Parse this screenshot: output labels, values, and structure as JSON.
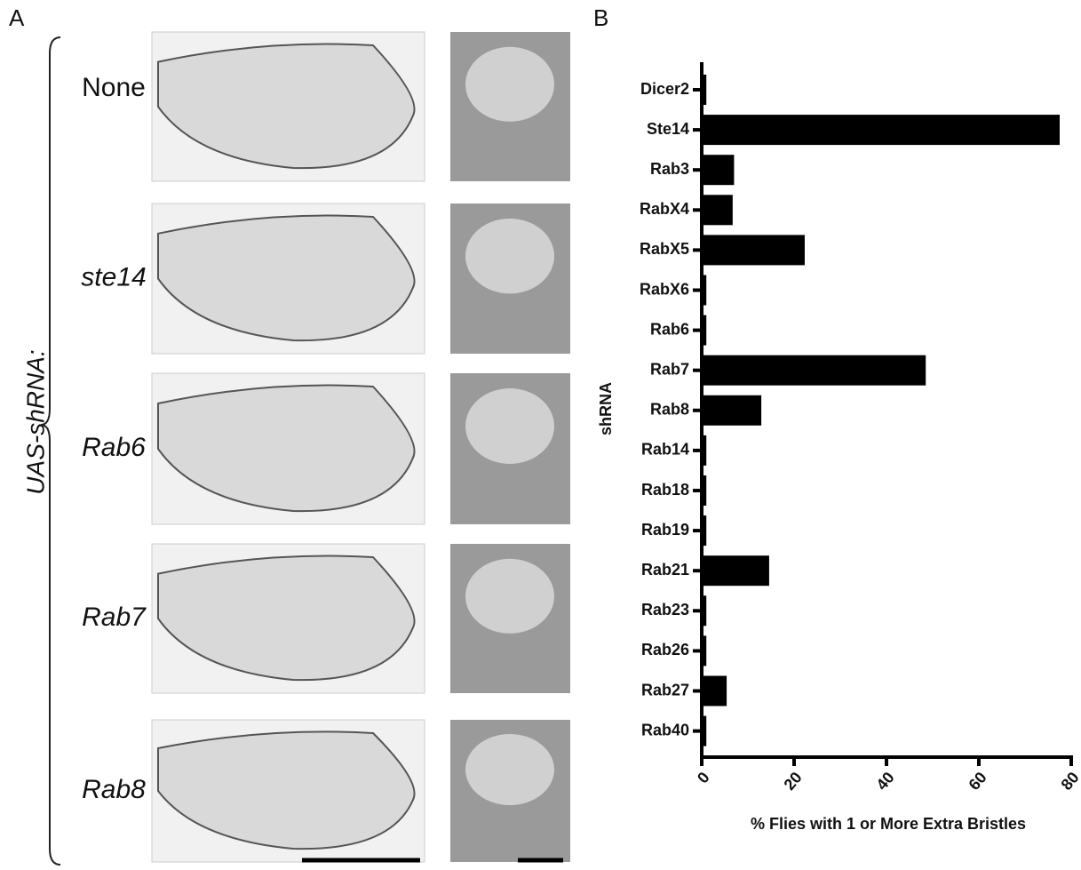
{
  "panel_a": {
    "label": "A",
    "group_label": "UAS-shRNA:",
    "rows": [
      "None",
      "ste14",
      "Rab6",
      "Rab7",
      "Rab8"
    ]
  },
  "chart_data": {
    "type": "hbar",
    "panel_label": "B",
    "x_label": "% Flies with 1 or More Extra Bristles",
    "y_label": "shRNA",
    "categories": [
      "Dicer2",
      "Ste14",
      "Rab3",
      "RabX4",
      "RabX5",
      "RabX6",
      "Rab6",
      "Rab7",
      "Rab8",
      "Rab14",
      "Rab18",
      "Rab19",
      "Rab21",
      "Rab23",
      "Rab26",
      "Rab27",
      "Rab40"
    ],
    "values": [
      1,
      77.5,
      7,
      6.7,
      22.3,
      1,
      1,
      48.5,
      12.9,
      1,
      1,
      1,
      14.6,
      1,
      1,
      5.4,
      1
    ],
    "color": "#000000",
    "xlim": [
      0,
      80
    ],
    "xticks": [
      0,
      20,
      40,
      60,
      80
    ]
  }
}
